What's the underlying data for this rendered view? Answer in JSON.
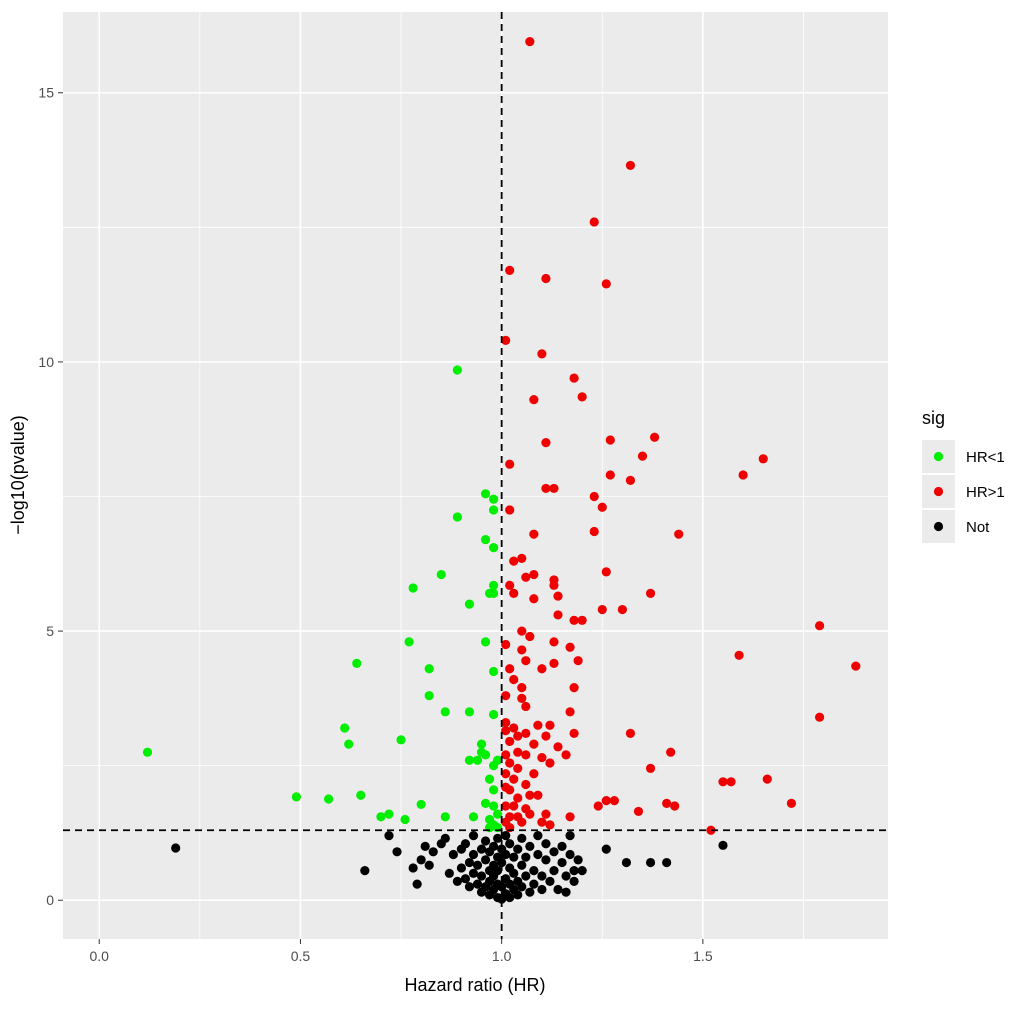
{
  "chart_data": {
    "type": "scatter",
    "xlabel": "Hazard ratio (HR)",
    "ylabel": "−log10(pvalue)",
    "xlim": [
      -0.09,
      1.96
    ],
    "ylim": [
      -0.72,
      16.5
    ],
    "x_ticks": [
      0.0,
      0.5,
      1.0,
      1.5
    ],
    "x_tick_labels": [
      "0.0",
      "0.5",
      "1.0",
      "1.5"
    ],
    "y_ticks": [
      0,
      5,
      10,
      15
    ],
    "y_tick_labels": [
      "0",
      "5",
      "10",
      "15"
    ],
    "grid": true,
    "panel_background": "#ebebeb",
    "reference_lines": {
      "vline_x": 1.0,
      "hline_y": 1.3,
      "style": "dashed"
    },
    "legend": {
      "title": "sig",
      "placement": "right",
      "entries": [
        {
          "label": "HR<1",
          "color": "#00ee00"
        },
        {
          "label": "HR>1",
          "color": "#ee0000"
        },
        {
          "label": "Not",
          "color": "#000000"
        }
      ]
    },
    "series": [
      {
        "name": "HR<1",
        "color": "#00ee00",
        "points": [
          [
            0.12,
            2.75
          ],
          [
            0.49,
            1.92
          ],
          [
            0.57,
            1.88
          ],
          [
            0.61,
            3.2
          ],
          [
            0.62,
            2.9
          ],
          [
            0.64,
            4.4
          ],
          [
            0.65,
            1.95
          ],
          [
            0.7,
            1.55
          ],
          [
            0.72,
            1.6
          ],
          [
            0.75,
            2.98
          ],
          [
            0.76,
            1.5
          ],
          [
            0.77,
            4.8
          ],
          [
            0.78,
            5.8
          ],
          [
            0.8,
            1.78
          ],
          [
            0.82,
            4.3
          ],
          [
            0.82,
            3.8
          ],
          [
            0.85,
            6.05
          ],
          [
            0.86,
            3.5
          ],
          [
            0.86,
            1.55
          ],
          [
            0.89,
            9.85
          ],
          [
            0.89,
            7.12
          ],
          [
            0.92,
            5.5
          ],
          [
            0.92,
            3.5
          ],
          [
            0.92,
            2.6
          ],
          [
            0.93,
            1.55
          ],
          [
            0.94,
            2.6
          ],
          [
            0.95,
            2.9
          ],
          [
            0.95,
            2.75
          ],
          [
            0.96,
            7.55
          ],
          [
            0.96,
            6.7
          ],
          [
            0.96,
            4.8
          ],
          [
            0.96,
            2.7
          ],
          [
            0.96,
            1.8
          ],
          [
            0.97,
            5.7
          ],
          [
            0.97,
            2.25
          ],
          [
            0.97,
            1.5
          ],
          [
            0.97,
            1.35
          ],
          [
            0.98,
            7.45
          ],
          [
            0.98,
            7.25
          ],
          [
            0.98,
            6.55
          ],
          [
            0.98,
            5.85
          ],
          [
            0.98,
            5.7
          ],
          [
            0.98,
            4.25
          ],
          [
            0.98,
            3.45
          ],
          [
            0.98,
            2.5
          ],
          [
            0.98,
            2.05
          ],
          [
            0.98,
            1.75
          ],
          [
            0.98,
            1.4
          ],
          [
            0.99,
            2.6
          ],
          [
            0.99,
            1.6
          ],
          [
            0.99,
            1.35
          ]
        ]
      },
      {
        "name": "HR>1",
        "color": "#ee0000",
        "points": [
          [
            1.07,
            15.95
          ],
          [
            1.32,
            13.65
          ],
          [
            1.23,
            12.6
          ],
          [
            1.02,
            11.7
          ],
          [
            1.11,
            11.55
          ],
          [
            1.26,
            11.45
          ],
          [
            1.01,
            10.4
          ],
          [
            1.1,
            10.15
          ],
          [
            1.18,
            9.7
          ],
          [
            1.08,
            9.3
          ],
          [
            1.2,
            9.35
          ],
          [
            1.38,
            8.6
          ],
          [
            1.27,
            8.55
          ],
          [
            1.11,
            8.5
          ],
          [
            1.35,
            8.25
          ],
          [
            1.65,
            8.2
          ],
          [
            1.02,
            8.1
          ],
          [
            1.6,
            7.9
          ],
          [
            1.27,
            7.9
          ],
          [
            1.32,
            7.8
          ],
          [
            1.11,
            7.65
          ],
          [
            1.13,
            7.65
          ],
          [
            1.23,
            7.5
          ],
          [
            1.25,
            7.3
          ],
          [
            1.02,
            7.25
          ],
          [
            1.44,
            6.8
          ],
          [
            1.08,
            6.8
          ],
          [
            1.23,
            6.85
          ],
          [
            1.03,
            6.3
          ],
          [
            1.05,
            6.35
          ],
          [
            1.26,
            6.1
          ],
          [
            1.06,
            6.0
          ],
          [
            1.08,
            6.05
          ],
          [
            1.13,
            5.95
          ],
          [
            1.13,
            5.85
          ],
          [
            1.02,
            5.85
          ],
          [
            1.03,
            5.7
          ],
          [
            1.37,
            5.7
          ],
          [
            1.14,
            5.65
          ],
          [
            1.08,
            5.6
          ],
          [
            1.3,
            5.4
          ],
          [
            1.25,
            5.4
          ],
          [
            1.14,
            5.3
          ],
          [
            1.18,
            5.2
          ],
          [
            1.2,
            5.2
          ],
          [
            1.79,
            5.1
          ],
          [
            1.05,
            5.0
          ],
          [
            1.07,
            4.9
          ],
          [
            1.13,
            4.8
          ],
          [
            1.01,
            4.75
          ],
          [
            1.17,
            4.7
          ],
          [
            1.05,
            4.65
          ],
          [
            1.59,
            4.55
          ],
          [
            1.19,
            4.45
          ],
          [
            1.06,
            4.45
          ],
          [
            1.13,
            4.4
          ],
          [
            1.88,
            4.35
          ],
          [
            1.02,
            4.3
          ],
          [
            1.1,
            4.3
          ],
          [
            1.03,
            4.1
          ],
          [
            1.05,
            3.95
          ],
          [
            1.18,
            3.95
          ],
          [
            1.05,
            3.75
          ],
          [
            1.01,
            3.8
          ],
          [
            1.06,
            3.6
          ],
          [
            1.17,
            3.5
          ],
          [
            1.79,
            3.4
          ],
          [
            1.01,
            3.3
          ],
          [
            1.03,
            3.2
          ],
          [
            1.09,
            3.25
          ],
          [
            1.12,
            3.25
          ],
          [
            1.01,
            3.15
          ],
          [
            1.06,
            3.1
          ],
          [
            1.18,
            3.1
          ],
          [
            1.32,
            3.1
          ],
          [
            1.04,
            3.05
          ],
          [
            1.11,
            3.05
          ],
          [
            1.02,
            2.95
          ],
          [
            1.08,
            2.9
          ],
          [
            1.14,
            2.85
          ],
          [
            1.04,
            2.75
          ],
          [
            1.01,
            2.7
          ],
          [
            1.06,
            2.7
          ],
          [
            1.42,
            2.75
          ],
          [
            1.16,
            2.7
          ],
          [
            1.1,
            2.65
          ],
          [
            1.12,
            2.55
          ],
          [
            1.02,
            2.55
          ],
          [
            1.04,
            2.45
          ],
          [
            1.01,
            2.35
          ],
          [
            1.08,
            2.35
          ],
          [
            1.37,
            2.45
          ],
          [
            1.03,
            2.25
          ],
          [
            1.66,
            2.25
          ],
          [
            1.55,
            2.2
          ],
          [
            1.57,
            2.2
          ],
          [
            1.06,
            2.15
          ],
          [
            1.01,
            2.1
          ],
          [
            1.02,
            2.05
          ],
          [
            1.07,
            1.95
          ],
          [
            1.04,
            1.9
          ],
          [
            1.09,
            1.95
          ],
          [
            1.26,
            1.85
          ],
          [
            1.28,
            1.85
          ],
          [
            1.41,
            1.8
          ],
          [
            1.72,
            1.8
          ],
          [
            1.01,
            1.75
          ],
          [
            1.03,
            1.75
          ],
          [
            1.06,
            1.7
          ],
          [
            1.24,
            1.75
          ],
          [
            1.43,
            1.75
          ],
          [
            1.34,
            1.65
          ],
          [
            1.11,
            1.6
          ],
          [
            1.07,
            1.6
          ],
          [
            1.02,
            1.55
          ],
          [
            1.04,
            1.55
          ],
          [
            1.17,
            1.55
          ],
          [
            1.01,
            1.45
          ],
          [
            1.05,
            1.45
          ],
          [
            1.1,
            1.45
          ],
          [
            1.12,
            1.4
          ],
          [
            1.02,
            1.35
          ],
          [
            1.52,
            1.3
          ]
        ]
      },
      {
        "name": "Not",
        "color": "#000000",
        "points": [
          [
            0.19,
            0.97
          ],
          [
            0.66,
            0.55
          ],
          [
            0.72,
            1.2
          ],
          [
            0.74,
            0.9
          ],
          [
            0.78,
            0.6
          ],
          [
            0.79,
            0.3
          ],
          [
            0.8,
            0.75
          ],
          [
            0.81,
            1.0
          ],
          [
            0.82,
            0.65
          ],
          [
            0.83,
            0.9
          ],
          [
            0.85,
            1.05
          ],
          [
            0.86,
            1.15
          ],
          [
            0.87,
            0.5
          ],
          [
            0.88,
            0.85
          ],
          [
            0.89,
            0.35
          ],
          [
            0.9,
            0.95
          ],
          [
            0.9,
            0.6
          ],
          [
            0.91,
            0.4
          ],
          [
            0.91,
            1.05
          ],
          [
            0.92,
            0.7
          ],
          [
            0.92,
            0.25
          ],
          [
            0.93,
            0.85
          ],
          [
            0.93,
            0.5
          ],
          [
            0.93,
            1.2
          ],
          [
            0.94,
            0.3
          ],
          [
            0.94,
            0.65
          ],
          [
            0.95,
            0.95
          ],
          [
            0.95,
            0.15
          ],
          [
            0.95,
            0.45
          ],
          [
            0.96,
            0.75
          ],
          [
            0.96,
            1.1
          ],
          [
            0.96,
            0.25
          ],
          [
            0.97,
            0.55
          ],
          [
            0.97,
            0.9
          ],
          [
            0.97,
            0.1
          ],
          [
            0.97,
            0.35
          ],
          [
            0.98,
            0.65
          ],
          [
            0.98,
            1.0
          ],
          [
            0.98,
            0.2
          ],
          [
            0.98,
            0.45
          ],
          [
            0.99,
            0.8
          ],
          [
            0.99,
            0.05
          ],
          [
            0.99,
            0.3
          ],
          [
            0.99,
            1.15
          ],
          [
            0.99,
            0.55
          ],
          [
            1.0,
            0.02
          ],
          [
            1.0,
            0.25
          ],
          [
            1.0,
            0.7
          ],
          [
            1.0,
            0.95
          ],
          [
            1.01,
            0.12
          ],
          [
            1.01,
            0.4
          ],
          [
            1.01,
            0.85
          ],
          [
            1.01,
            1.2
          ],
          [
            1.02,
            0.3
          ],
          [
            1.02,
            0.6
          ],
          [
            1.02,
            0.05
          ],
          [
            1.02,
            1.05
          ],
          [
            1.03,
            0.2
          ],
          [
            1.03,
            0.5
          ],
          [
            1.03,
            0.8
          ],
          [
            1.04,
            0.35
          ],
          [
            1.04,
            0.1
          ],
          [
            1.04,
            0.95
          ],
          [
            1.05,
            0.65
          ],
          [
            1.05,
            0.25
          ],
          [
            1.05,
            1.15
          ],
          [
            1.06,
            0.45
          ],
          [
            1.06,
            0.8
          ],
          [
            1.07,
            0.15
          ],
          [
            1.07,
            1.0
          ],
          [
            1.08,
            0.55
          ],
          [
            1.08,
            0.3
          ],
          [
            1.09,
            0.85
          ],
          [
            1.09,
            1.2
          ],
          [
            1.1,
            0.45
          ],
          [
            1.1,
            0.2
          ],
          [
            1.11,
            0.75
          ],
          [
            1.11,
            1.05
          ],
          [
            1.12,
            0.35
          ],
          [
            1.13,
            0.9
          ],
          [
            1.13,
            0.55
          ],
          [
            1.14,
            0.2
          ],
          [
            1.15,
            0.7
          ],
          [
            1.15,
            1.0
          ],
          [
            1.16,
            0.45
          ],
          [
            1.16,
            0.15
          ],
          [
            1.17,
            1.2
          ],
          [
            1.17,
            0.85
          ],
          [
            1.18,
            0.55
          ],
          [
            1.18,
            0.35
          ],
          [
            1.19,
            0.75
          ],
          [
            1.2,
            0.55
          ],
          [
            1.26,
            0.95
          ],
          [
            1.31,
            0.7
          ],
          [
            1.37,
            0.7
          ],
          [
            1.41,
            0.7
          ],
          [
            1.55,
            1.02
          ]
        ]
      }
    ]
  }
}
